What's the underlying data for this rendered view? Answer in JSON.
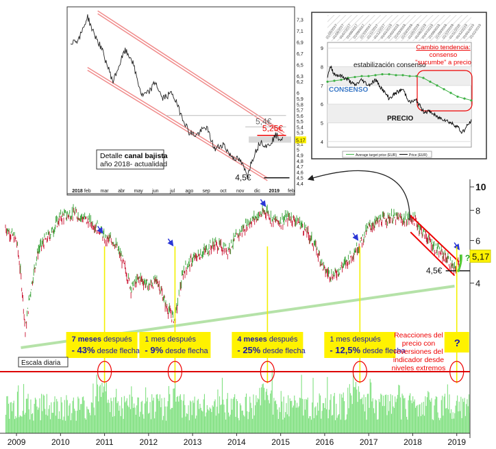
{
  "chart_data": [
    {
      "type": "line",
      "subtitle": "candlestick",
      "x_tick_labels": [
        "2009",
        "2010",
        "2011",
        "2012",
        "2013",
        "2014",
        "2015",
        "2016",
        "2017",
        "2018",
        "2019"
      ],
      "y_tick_labels": [
        4,
        6,
        8,
        10
      ],
      "y_top_label": "10",
      "ylim": [
        2.0,
        10.2
      ],
      "scale": "log",
      "last_price_label": "5,17",
      "support_label": "4,5€",
      "scale_label": "Escala diaria",
      "series": [
        {
          "x": [
            2008.75,
            2009.0,
            2009.2,
            2009.5,
            2009.8,
            2010.0,
            2010.3,
            2010.6,
            2010.9,
            2011.0,
            2011.2,
            2011.4,
            2011.6,
            2011.8,
            2012.0,
            2012.2,
            2012.4,
            2012.6,
            2012.8,
            2013.0,
            2013.2,
            2013.5,
            2013.8,
            2014.0,
            2014.3,
            2014.6,
            2014.7,
            2014.8,
            2015.0,
            2015.2,
            2015.4,
            2015.6,
            2015.8,
            2016.0,
            2016.2,
            2016.5,
            2016.8,
            2017.0,
            2017.2,
            2017.5,
            2017.8,
            2018.0,
            2018.2,
            2018.5,
            2018.8,
            2018.95,
            2019.1
          ],
          "y": [
            6.8,
            6.0,
            2.5,
            5.5,
            6.5,
            7.5,
            7.8,
            7.3,
            6.7,
            6.1,
            6.0,
            5.0,
            3.8,
            4.2,
            3.9,
            4.1,
            3.2,
            2.8,
            4.5,
            5.0,
            5.3,
            5.8,
            5.5,
            6.2,
            7.2,
            7.8,
            8.0,
            7.3,
            7.2,
            7.5,
            7.2,
            6.5,
            5.6,
            4.5,
            4.3,
            4.9,
            5.8,
            6.8,
            7.2,
            7.5,
            7.3,
            7.5,
            6.6,
            5.6,
            5.0,
            4.5,
            5.17
          ]
        }
      ],
      "annotations": [
        {
          "x": 2011.0,
          "line1_bold": "7 meses",
          "line1_text": " después",
          "line2_bold": "- 43%",
          "line2_text": " desde flecha"
        },
        {
          "x": 2012.6,
          "line1_bold": "",
          "line1_text": "1 mes después",
          "line2_bold": "- 9%",
          "line2_text": " desde flecha"
        },
        {
          "x": 2014.7,
          "line1_bold": "4 meses",
          "line1_text": " después",
          "line2_bold": "- 25%",
          "line2_text": " desde flecha"
        },
        {
          "x": 2016.8,
          "line1_bold": "",
          "line1_text": "1 mes después",
          "line2_bold": "- 12,5%",
          "line2_text": " desde flecha"
        },
        {
          "x": 2019.0,
          "line1_bold": "?",
          "line1_text": "",
          "line2_bold": "",
          "line2_text": ""
        }
      ],
      "reaction_note": [
        "Reacciones del",
        "precio con",
        "reversiones del",
        "indicador desde",
        "niveles extremos"
      ],
      "green_question": "?"
    },
    {
      "type": "line",
      "subtitle": "inset-canal",
      "x_tick_labels": [
        "2018",
        "feb",
        "mar",
        "abr",
        "may",
        "jun",
        "jul",
        "ago",
        "sep",
        "oct",
        "nov",
        "dic",
        "2019",
        "feb"
      ],
      "y_tick_labels": [
        "7,3",
        "7,1",
        "6,9",
        "6,7",
        "6,5",
        "6,3",
        "6,2",
        "6",
        "5,9",
        "5,8",
        "5,7",
        "5,6",
        "5,5",
        "5,4",
        "5,3",
        "5,2",
        "5,1",
        "5",
        "4,9",
        "4,8",
        "4,7",
        "4,6",
        "4,5",
        "4,4"
      ],
      "ylim": [
        4.4,
        7.4
      ],
      "series": [
        {
          "x": [
            0,
            0.5,
            1,
            1.3,
            1.8,
            2.5,
            3.2,
            3.6,
            4.2,
            4.6,
            5.0,
            5.4,
            6.0,
            6.4,
            7.0,
            7.4,
            8.0,
            8.5,
            9.0,
            9.4,
            10.0,
            10.4,
            10.8,
            11.2,
            11.6,
            12.1,
            12.5
          ],
          "y": [
            6.9,
            6.95,
            7.35,
            7.1,
            6.8,
            6.2,
            6.75,
            6.6,
            5.95,
            6.0,
            6.2,
            5.9,
            6.0,
            5.7,
            5.3,
            5.25,
            5.4,
            5.0,
            5.1,
            4.9,
            4.8,
            4.55,
            4.9,
            5.15,
            5.05,
            5.25,
            5.17
          ]
        }
      ],
      "level_labels": [
        "5,4€",
        "5,25€",
        "4,5€"
      ],
      "current_price": "5,17",
      "box_lines": [
        "Detalle ",
        "canal bajista",
        "año 2018- actualidad"
      ]
    },
    {
      "type": "line",
      "subtitle": "inset-consenso",
      "x_tick_labels": [
        "01/05/2017",
        "01/06/2017",
        "01/07/2017",
        "01/08/2017",
        "01/09/2017",
        "01/10/2017",
        "01/11/2017",
        "01/12/2017",
        "01/01/2018",
        "01/02/2018",
        "01/03/2018",
        "01/04/2018",
        "01/05/2018",
        "01/06/2018",
        "01/07/2018",
        "01/08/2018",
        "01/09/2018",
        "01/10/2018",
        "01/11/2018",
        "01/12/2018",
        "01/01/2019",
        "01/02/2019"
      ],
      "y_tick_labels": [
        "9",
        "8",
        "7",
        "6",
        "5",
        "4"
      ],
      "ylim": [
        3.7,
        9.3
      ],
      "series": [
        {
          "name": "Average target price (EUR)",
          "color": "#3cb043",
          "x": [
            0,
            1,
            2,
            3,
            4,
            5,
            6,
            7,
            8,
            9,
            10,
            11,
            12,
            13,
            14,
            15,
            16,
            17,
            18,
            19,
            20,
            21
          ],
          "y": [
            7.2,
            7.25,
            7.3,
            7.4,
            7.45,
            7.5,
            7.5,
            7.55,
            7.6,
            7.6,
            7.55,
            7.55,
            7.5,
            7.5,
            7.4,
            7.2,
            7.0,
            6.8,
            6.6,
            6.4,
            6.3,
            6.2
          ]
        },
        {
          "name": "Price (EUR)",
          "color": "#000000",
          "x": [
            0,
            0.5,
            1,
            2,
            3,
            4,
            5,
            6,
            7,
            8,
            9,
            10,
            11,
            12,
            13,
            14,
            15,
            16,
            17,
            18,
            19,
            19.5,
            20,
            20.5,
            21
          ],
          "y": [
            7.5,
            8.0,
            7.6,
            7.5,
            7.3,
            7.0,
            7.3,
            7.0,
            7.3,
            6.8,
            6.3,
            6.6,
            6.8,
            6.1,
            6.2,
            5.6,
            5.6,
            5.3,
            5.2,
            5.0,
            4.8,
            4.5,
            4.6,
            4.9,
            5.1
          ]
        }
      ],
      "labels": {
        "consenso": "CONSENSO",
        "estabilizacion": "estabilización consenso",
        "precio": "PRECIO"
      },
      "cambio_lines": [
        "Cambio tendencia:",
        "consenso",
        "\"sucumbe\" a precio"
      ],
      "legend": [
        "Average target price (EUR)",
        "Price (EUR)"
      ]
    }
  ]
}
